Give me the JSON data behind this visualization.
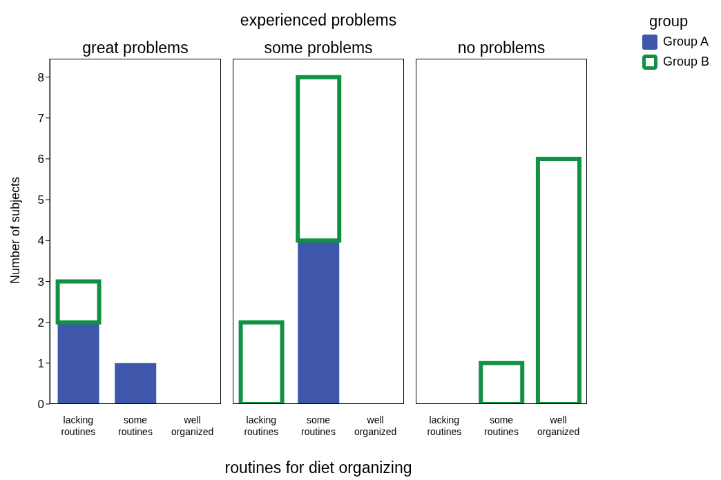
{
  "chart_data": [
    {
      "type": "bar",
      "title": "great problems",
      "ylabel": "Number of subjects",
      "legend_title": "group",
      "legend": "right",
      "categories": [
        "lacking routines",
        "some routines",
        "well organized"
      ],
      "stacked": true,
      "series": [
        {
          "name": "Group A",
          "color": "#3f57ab",
          "values": [
            2,
            1,
            0
          ]
        },
        {
          "name": "Group B",
          "color": "#119142",
          "values": [
            1,
            0,
            0
          ]
        }
      ],
      "ylim": [
        0,
        8.45
      ],
      "yticks": [
        0,
        1,
        2,
        3,
        4,
        5,
        6,
        7,
        8
      ],
      "grid": false
    },
    {
      "type": "bar",
      "title": "some problems",
      "annotations": [
        "experienced problems"
      ],
      "xlabel": "routines for diet organizing",
      "categories": [
        "lacking routines",
        "some routines",
        "well organized"
      ],
      "stacked": true,
      "series": [
        {
          "color": "#3f57ab",
          "values": [
            0,
            4,
            0
          ]
        },
        {
          "color": "#119142",
          "values": [
            2,
            4,
            0
          ]
        }
      ],
      "ylim": [
        0,
        8.45
      ],
      "yticks": [
        0,
        1,
        2,
        3,
        4,
        5,
        6,
        7,
        8
      ],
      "tick_labels": "x",
      "grid": false
    },
    {
      "type": "bar",
      "title": "no problems",
      "categories": [
        "lacking routines",
        "some routines",
        "well organized"
      ],
      "stacked": true,
      "series": [
        {
          "color": "#3f57ab",
          "values": [
            0,
            0,
            0
          ]
        },
        {
          "color": "#119142",
          "values": [
            0,
            1,
            6
          ]
        }
      ],
      "ylim": [
        0,
        8.45
      ],
      "yticks": [
        0,
        1,
        2,
        3,
        4,
        5,
        6,
        7,
        8
      ],
      "tick_labels": "x",
      "grid": false
    }
  ]
}
